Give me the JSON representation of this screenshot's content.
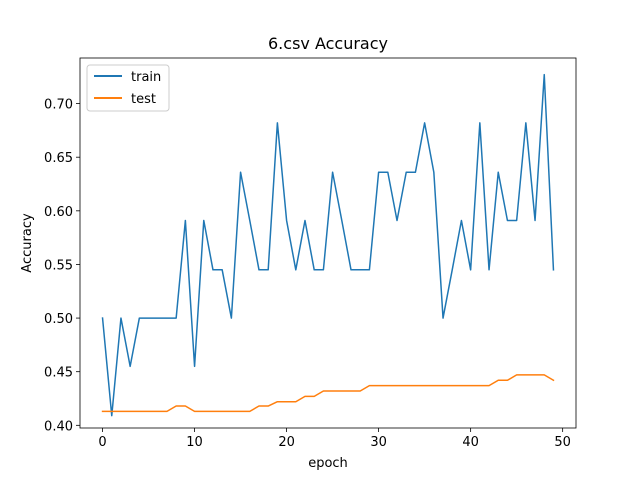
{
  "chart_data": {
    "type": "line",
    "title": "6.csv Accuracy",
    "xlabel": "epoch",
    "ylabel": "Accuracy",
    "xlim": [
      -2.45,
      51.45
    ],
    "ylim": [
      0.3975,
      0.7425
    ],
    "xticks": [
      0,
      10,
      20,
      30,
      40,
      50
    ],
    "yticks": [
      0.4,
      0.45,
      0.5,
      0.55,
      0.6,
      0.65,
      0.7
    ],
    "ytick_labels": [
      "0.40",
      "0.45",
      "0.50",
      "0.55",
      "0.60",
      "0.65",
      "0.70"
    ],
    "grid": false,
    "legend_position": "upper-left",
    "x": [
      0,
      1,
      2,
      3,
      4,
      5,
      6,
      7,
      8,
      9,
      10,
      11,
      12,
      13,
      14,
      15,
      16,
      17,
      18,
      19,
      20,
      21,
      22,
      23,
      24,
      25,
      26,
      27,
      28,
      29,
      30,
      31,
      32,
      33,
      34,
      35,
      36,
      37,
      38,
      39,
      40,
      41,
      42,
      43,
      44,
      45,
      46,
      47,
      48,
      49
    ],
    "series": [
      {
        "name": "train",
        "color": "#1f77b4",
        "values": [
          0.5,
          0.409,
          0.5,
          0.455,
          0.5,
          0.5,
          0.5,
          0.5,
          0.5,
          0.591,
          0.455,
          0.591,
          0.545,
          0.545,
          0.5,
          0.636,
          0.591,
          0.545,
          0.545,
          0.682,
          0.591,
          0.545,
          0.591,
          0.545,
          0.545,
          0.636,
          0.591,
          0.545,
          0.545,
          0.545,
          0.636,
          0.636,
          0.591,
          0.636,
          0.636,
          0.682,
          0.636,
          0.5,
          0.545,
          0.591,
          0.545,
          0.682,
          0.545,
          0.636,
          0.591,
          0.591,
          0.682,
          0.591,
          0.727,
          0.545
        ]
      },
      {
        "name": "test",
        "color": "#ff7f0e",
        "values": [
          0.413,
          0.413,
          0.413,
          0.413,
          0.413,
          0.413,
          0.413,
          0.413,
          0.418,
          0.418,
          0.413,
          0.413,
          0.413,
          0.413,
          0.413,
          0.413,
          0.413,
          0.418,
          0.418,
          0.422,
          0.422,
          0.422,
          0.427,
          0.427,
          0.432,
          0.432,
          0.432,
          0.432,
          0.432,
          0.437,
          0.437,
          0.437,
          0.437,
          0.437,
          0.437,
          0.437,
          0.437,
          0.437,
          0.437,
          0.437,
          0.437,
          0.437,
          0.437,
          0.442,
          0.442,
          0.447,
          0.447,
          0.447,
          0.447,
          0.442
        ]
      }
    ]
  }
}
